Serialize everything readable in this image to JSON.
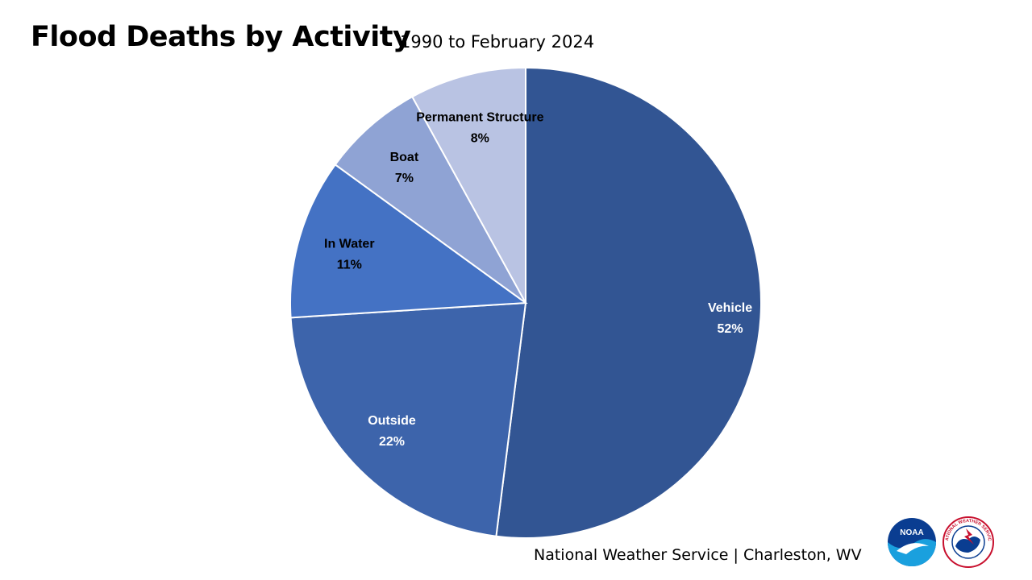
{
  "header": {
    "title": "Flood Deaths by Activity",
    "subtitle": "1990 to February 2024"
  },
  "chart_data": {
    "type": "pie",
    "slices": [
      {
        "label": "Vehicle",
        "value": 52,
        "value_label": "52%",
        "color": "#325593",
        "text_color": "#ffffff"
      },
      {
        "label": "Outside",
        "value": 22,
        "value_label": "22%",
        "color": "#3d64ab",
        "text_color": "#ffffff"
      },
      {
        "label": "In Water",
        "value": 11,
        "value_label": "11%",
        "color": "#4472c4",
        "text_color": "#000000"
      },
      {
        "label": "Boat",
        "value": 7,
        "value_label": "7%",
        "color": "#8fa3d4",
        "text_color": "#000000"
      },
      {
        "label": "Permanent Structure",
        "value": 8,
        "value_label": "8%",
        "color": "#b9c3e3",
        "text_color": "#000000"
      }
    ],
    "start_direction": "top",
    "order": "clockwise"
  },
  "footer": {
    "text": "National Weather Service | Charleston, WV"
  },
  "logos": {
    "noaa": "NOAA",
    "nws": "NATIONAL WEATHER SERVICE"
  }
}
